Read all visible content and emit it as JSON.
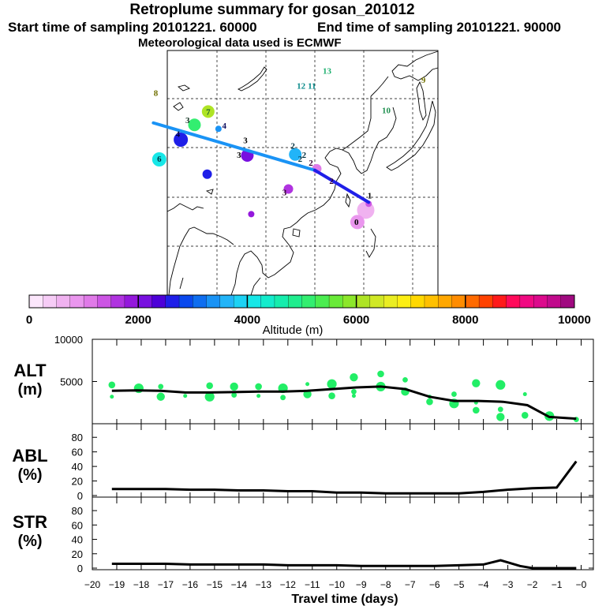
{
  "header": {
    "title": "Retroplume summary for gosan_201012",
    "start": "Start time of sampling 20101221. 60000",
    "end": "End time of sampling 20101221. 90000",
    "met": "Meteorological data used is ECMWF"
  },
  "colorbar": {
    "label": "Altitude (m)",
    "ticks": [
      "0",
      "2000",
      "4000",
      "6000",
      "8000",
      "10000"
    ],
    "colors": [
      "#fbe6fb",
      "#f6ccf6",
      "#f0b2f0",
      "#ea96ee",
      "#e07ae8",
      "#cc55e4",
      "#b033e0",
      "#9418dc",
      "#7810e0",
      "#4d00d8",
      "#1f1fe8",
      "#0a49ee",
      "#0f6ef0",
      "#1a93f5",
      "#22b4f8",
      "#1cd2f4",
      "#17e7e7",
      "#14eccc",
      "#16edad",
      "#20ed8e",
      "#33ee70",
      "#4bed50",
      "#69ea38",
      "#8ce72a",
      "#aee425",
      "#d0e825",
      "#eaed22",
      "#fcee14",
      "#ffd800",
      "#ffc000",
      "#ffa700",
      "#ff8c00",
      "#ff6a00",
      "#ff4200",
      "#ff1a1a",
      "#ff0a5a",
      "#f00a82",
      "#dc0a8c",
      "#c10a8c",
      "#a00a80"
    ]
  },
  "map": {
    "numbers": [
      {
        "t": "13",
        "lon": 112.5,
        "lat": 55.6,
        "color": "#20b070"
      },
      {
        "t": "12",
        "lon": 107.2,
        "lat": 52.6,
        "color": "#0a8a8a"
      },
      {
        "t": "11",
        "lon": 109.4,
        "lat": 52.6,
        "color": "#0a8a8a"
      },
      {
        "t": "9",
        "lon": 132.2,
        "lat": 53.8,
        "color": "#707000"
      },
      {
        "t": "10",
        "lon": 124.6,
        "lat": 47.6,
        "color": "#209050"
      },
      {
        "t": "8",
        "lon": 77.5,
        "lat": 51.1,
        "color": "#707000"
      },
      {
        "t": "7",
        "lon": 88.2,
        "lat": 47.3,
        "color": "#1a6030"
      },
      {
        "t": "3",
        "lon": 84.0,
        "lat": 45.6,
        "color": "#103020"
      },
      {
        "t": "4",
        "lon": 91.5,
        "lat": 44.5,
        "color": "#101060"
      },
      {
        "t": "4",
        "lon": 82.0,
        "lat": 42.8,
        "color": "#000040"
      },
      {
        "t": "3",
        "lon": 95.8,
        "lat": 41.5,
        "color": "#000000"
      },
      {
        "t": "3",
        "lon": 94.5,
        "lat": 38.6,
        "color": "#000000"
      },
      {
        "t": "2",
        "lon": 105.5,
        "lat": 40.4,
        "color": "#003040"
      },
      {
        "t": "2",
        "lon": 107.8,
        "lat": 38.6,
        "color": "#003040"
      },
      {
        "t": "2",
        "lon": 107.0,
        "lat": 37.8,
        "color": "#003040"
      },
      {
        "t": "2",
        "lon": 109.2,
        "lat": 37.0,
        "color": "#300030"
      },
      {
        "t": "2",
        "lon": 113.4,
        "lat": 33.3,
        "color": "#300030"
      },
      {
        "t": "6",
        "lon": 78.2,
        "lat": 37.8,
        "color": "#003040"
      },
      {
        "t": "3",
        "lon": 103.8,
        "lat": 31.0,
        "color": "#300030"
      },
      {
        "t": "1",
        "lon": 121.2,
        "lat": 30.3,
        "color": "#000000"
      },
      {
        "t": "0",
        "lon": 118.5,
        "lat": 25.0,
        "color": "#000000"
      }
    ],
    "plumes": [
      {
        "lon": 88.2,
        "lat": 47.3,
        "r": 8,
        "color": "#aee425"
      },
      {
        "lon": 85.4,
        "lat": 44.6,
        "r": 8,
        "color": "#33ee70"
      },
      {
        "lon": 90.3,
        "lat": 43.8,
        "r": 4,
        "color": "#1a93f5"
      },
      {
        "lon": 82.6,
        "lat": 41.6,
        "r": 9,
        "color": "#1f1fe8"
      },
      {
        "lon": 96.2,
        "lat": 38.4,
        "r": 8,
        "color": "#7810e0"
      },
      {
        "lon": 106.0,
        "lat": 38.6,
        "r": 8,
        "color": "#22b4f8"
      },
      {
        "lon": 78.2,
        "lat": 37.6,
        "r": 9,
        "color": "#17e7e7"
      },
      {
        "lon": 88.0,
        "lat": 34.6,
        "r": 6,
        "color": "#1f1fe8"
      },
      {
        "lon": 110.4,
        "lat": 35.7,
        "r": 6,
        "color": "#e07ae8"
      },
      {
        "lon": 104.6,
        "lat": 31.6,
        "r": 6,
        "color": "#b033e0"
      },
      {
        "lon": 97.0,
        "lat": 26.5,
        "r": 4,
        "color": "#9418dc"
      },
      {
        "lon": 120.4,
        "lat": 27.3,
        "r": 11,
        "color": "#f0b2f0"
      },
      {
        "lon": 118.7,
        "lat": 24.9,
        "r": 9,
        "color": "#ea96ee"
      },
      {
        "lon": 121.0,
        "lat": 28.6,
        "r": 4,
        "color": "#cc55e4"
      }
    ],
    "trajectory": [
      {
        "lon": 77.0,
        "lat": 45.0,
        "color": "#1a93f5"
      },
      {
        "lon": 110.0,
        "lat": 35.4,
        "color": "#1f1fe8"
      },
      {
        "lon": 121.0,
        "lat": 28.9,
        "color": "#1f1fe8"
      }
    ]
  },
  "chart_data": [
    {
      "type": "line",
      "panel": "ALT",
      "ylabel": "ALT (m)",
      "x": [
        -19.2,
        -18.2,
        -17.2,
        -16.2,
        -15.2,
        -14.2,
        -13.2,
        -12.2,
        -11.2,
        -10.2,
        -9.2,
        -8.2,
        -7.2,
        -6.2,
        -5.2,
        -4.2,
        -3.2,
        -2.2,
        -1.3,
        -0.2
      ],
      "y": [
        3900,
        3950,
        3900,
        3700,
        3700,
        3750,
        3800,
        3800,
        3900,
        4100,
        4300,
        4400,
        4100,
        3200,
        2700,
        2700,
        2600,
        2200,
        800,
        600
      ],
      "ylim": [
        0,
        10000
      ],
      "yticks": [
        5000,
        10000
      ],
      "scatter": [
        [
          -19.2,
          3200
        ],
        [
          -19.2,
          4600
        ],
        [
          -18.1,
          4200
        ],
        [
          -17.2,
          4400
        ],
        [
          -17.2,
          3200
        ],
        [
          -16.2,
          3300
        ],
        [
          -15.2,
          4500
        ],
        [
          -15.2,
          3200
        ],
        [
          -14.2,
          3400
        ],
        [
          -14.2,
          4400
        ],
        [
          -13.2,
          3300
        ],
        [
          -13.2,
          4400
        ],
        [
          -12.2,
          4200
        ],
        [
          -12.2,
          3100
        ],
        [
          -11.2,
          3500
        ],
        [
          -11.2,
          4700
        ],
        [
          -10.2,
          3300
        ],
        [
          -10.2,
          4700
        ],
        [
          -9.3,
          3800
        ],
        [
          -9.3,
          5500
        ],
        [
          -9.3,
          3300
        ],
        [
          -8.2,
          5900
        ],
        [
          -8.2,
          4400
        ],
        [
          -7.2,
          5200
        ],
        [
          -7.2,
          3800
        ],
        [
          -6.2,
          3200
        ],
        [
          -6.2,
          2600
        ],
        [
          -5.2,
          2400
        ],
        [
          -5.2,
          3500
        ],
        [
          -4.3,
          4800
        ],
        [
          -4.3,
          2500
        ],
        [
          -4.3,
          1600
        ],
        [
          -3.3,
          4600
        ],
        [
          -3.3,
          1700
        ],
        [
          -3.3,
          800
        ],
        [
          -2.3,
          3500
        ],
        [
          -2.3,
          1000
        ],
        [
          -1.3,
          900
        ],
        [
          -0.2,
          500
        ]
      ]
    },
    {
      "type": "line",
      "panel": "ABL",
      "ylabel": "ABL (%)",
      "x": [
        -19.2,
        -18.0,
        -17.0,
        -16.0,
        -15.0,
        -14.0,
        -13.0,
        -12.0,
        -11.0,
        -10.0,
        -9.0,
        -8.0,
        -7.0,
        -6.0,
        -5.0,
        -4.0,
        -3.0,
        -2.0,
        -1.0,
        -0.2
      ],
      "y": [
        9,
        9,
        9,
        8,
        8,
        7,
        7,
        6,
        6,
        4,
        4,
        3,
        3,
        3,
        3,
        5,
        8,
        10,
        11,
        47
      ],
      "ylim": [
        0,
        90
      ],
      "yticks": [
        0,
        20,
        40,
        60,
        80
      ]
    },
    {
      "type": "line",
      "panel": "STR",
      "ylabel": "STR (%)",
      "x": [
        -19.2,
        -18.0,
        -17.0,
        -16.0,
        -15.0,
        -14.0,
        -13.0,
        -12.0,
        -11.0,
        -10.0,
        -9.0,
        -8.0,
        -7.0,
        -6.0,
        -5.0,
        -4.0,
        -3.3,
        -2.5,
        -2.0,
        -1.0,
        -0.2
      ],
      "y": [
        6,
        6,
        6,
        5,
        5,
        5,
        5,
        4,
        4,
        4,
        3,
        3,
        3,
        3,
        4,
        5,
        11,
        3,
        0,
        0,
        0
      ],
      "ylim": [
        0,
        90
      ],
      "yticks": [
        0,
        20,
        40,
        60,
        80
      ]
    }
  ],
  "xaxis": {
    "label": "Travel time (days)",
    "ticks": [
      "−20",
      "−19",
      "−18",
      "−17",
      "−16",
      "−15",
      "−14",
      "−13",
      "−12",
      "−11",
      "−10",
      "−9",
      "−8",
      "−7",
      "−6",
      "−5",
      "−4",
      "−3",
      "−2",
      "−1",
      "−0"
    ],
    "values": [
      -20,
      -19,
      -18,
      -17,
      -16,
      -15,
      -14,
      -13,
      -12,
      -11,
      -10,
      -9,
      -8,
      -7,
      -6,
      -5,
      -4,
      -3,
      -2,
      -1,
      0
    ]
  },
  "panel_titles": {
    "alt": [
      "ALT",
      "(m)"
    ],
    "abl": [
      "ABL",
      "(%)"
    ],
    "str": [
      "STR",
      "(%)"
    ]
  },
  "style": {
    "line_color": "#000000",
    "scatter_color": "#22ee66",
    "trajectory_color": "#1a93f5"
  }
}
